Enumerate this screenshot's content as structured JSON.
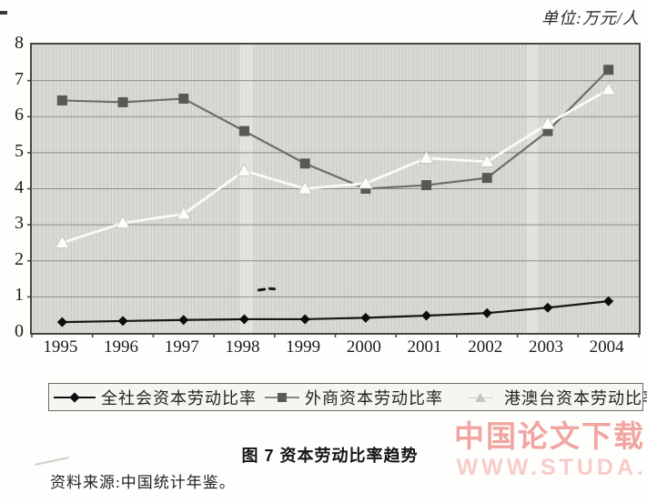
{
  "unit_label": "单位:万元/人",
  "chart_data": {
    "type": "line",
    "title": "资本劳动比率趋势",
    "unit": "万元/人",
    "categories": [
      "1995",
      "1996",
      "1997",
      "1998",
      "1999",
      "2000",
      "2001",
      "2002",
      "2003",
      "2004"
    ],
    "series": [
      {
        "name": "全社会资本劳动比率",
        "marker": "diamond",
        "marker_color": "#0d0d0d",
        "line_color": "#161616",
        "line_width": 2.2,
        "values": [
          0.3,
          0.33,
          0.36,
          0.38,
          0.38,
          0.42,
          0.48,
          0.55,
          0.7,
          0.88
        ]
      },
      {
        "name": "外商资本劳动比率",
        "marker": "square",
        "marker_color": "#5a5854",
        "line_color": "#6f6d69",
        "line_width": 2.2,
        "values": [
          6.45,
          6.4,
          6.5,
          5.6,
          4.7,
          4.0,
          4.1,
          4.3,
          5.6,
          7.3
        ]
      },
      {
        "name": "港澳台资本劳动比率",
        "marker": "triangle",
        "marker_color": "#fdfcf9",
        "line_color": "#fbfaf7",
        "line_width": 2.8,
        "values": [
          2.5,
          3.05,
          3.3,
          4.5,
          4.0,
          4.15,
          4.85,
          4.75,
          5.8,
          6.75
        ]
      }
    ],
    "draw_order": [
      1,
      2,
      0
    ],
    "ylim": [
      0,
      8
    ],
    "ytick_step": 1,
    "grid": "horizontal",
    "gridline_color": "#8f8d87",
    "legend_position": "bottom"
  },
  "caption": {
    "text": "图 7   资本劳动比率趋势"
  },
  "source_note": "资料来源:中国统计年鉴。",
  "watermark": {
    "line1": "中国论文下载",
    "line2": "WWW.STUDA.",
    "color1": "#f1a5a1",
    "color2": "#f8ccc8"
  }
}
